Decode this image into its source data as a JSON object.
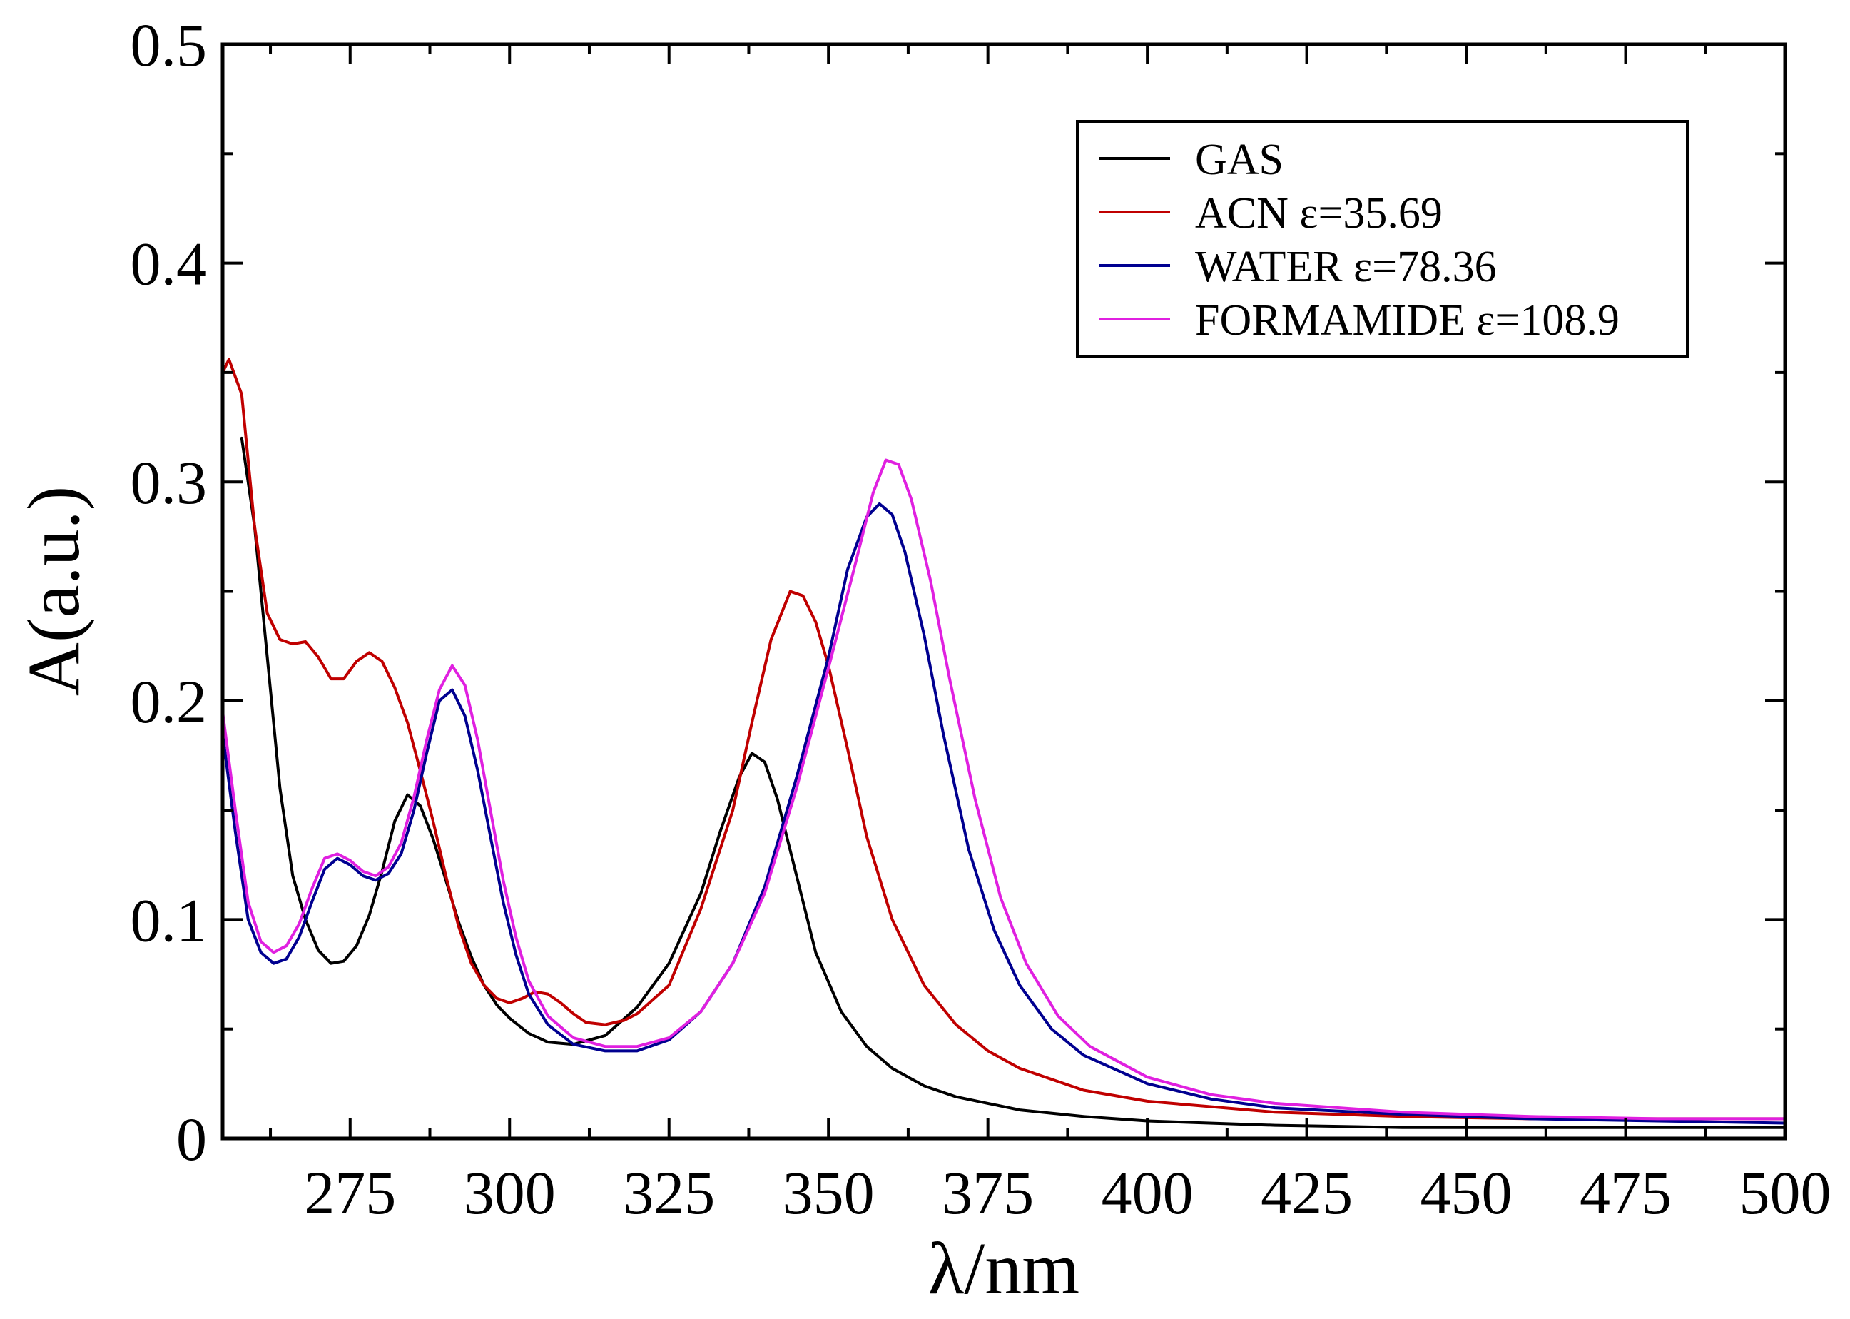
{
  "chart_data": {
    "type": "line",
    "title": "",
    "xlabel": "λ/nm",
    "ylabel": "A(a.u.)",
    "xlim": [
      255,
      500
    ],
    "ylim": [
      0,
      0.5
    ],
    "x_ticks": [
      275,
      300,
      325,
      350,
      375,
      400,
      425,
      450,
      475,
      500
    ],
    "y_ticks": [
      0,
      0.1,
      0.2,
      0.3,
      0.4,
      0.5
    ],
    "y_tick_labels": [
      "0",
      "0.1",
      "0.2",
      "0.3",
      "0.4",
      "0.5"
    ],
    "x_tick_labels": [
      "275",
      "300",
      "325",
      "350",
      "375",
      "400",
      "425",
      "450",
      "475",
      "500"
    ],
    "grid": false,
    "legend_position": "top-right",
    "series": [
      {
        "name": "GAS",
        "color": "#000000",
        "x": [
          258,
          260,
          262,
          264,
          266,
          268,
          270,
          272,
          274,
          276,
          278,
          280,
          282,
          284,
          286,
          288,
          290,
          292,
          294,
          296,
          298,
          300,
          303,
          306,
          310,
          315,
          320,
          325,
          330,
          333,
          336,
          338,
          340,
          342,
          345,
          348,
          352,
          356,
          360,
          365,
          370,
          375,
          380,
          390,
          400,
          420,
          440,
          460,
          480,
          500
        ],
        "y": [
          0.32,
          0.28,
          0.22,
          0.16,
          0.12,
          0.1,
          0.086,
          0.08,
          0.081,
          0.088,
          0.102,
          0.122,
          0.145,
          0.157,
          0.152,
          0.137,
          0.118,
          0.099,
          0.083,
          0.07,
          0.061,
          0.055,
          0.048,
          0.044,
          0.043,
          0.047,
          0.06,
          0.08,
          0.112,
          0.14,
          0.165,
          0.176,
          0.172,
          0.155,
          0.12,
          0.085,
          0.058,
          0.042,
          0.032,
          0.024,
          0.019,
          0.016,
          0.013,
          0.01,
          0.008,
          0.006,
          0.005,
          0.005,
          0.005,
          0.005
        ]
      },
      {
        "name": "ACN ε=35.69",
        "color": "#c00000",
        "x": [
          255,
          256,
          258,
          260,
          262,
          264,
          266,
          268,
          270,
          272,
          274,
          276,
          278,
          280,
          282,
          284,
          286,
          288,
          290,
          292,
          294,
          296,
          298,
          300,
          302,
          304,
          306,
          308,
          310,
          312,
          315,
          318,
          320,
          325,
          330,
          335,
          338,
          341,
          344,
          346,
          348,
          350,
          353,
          356,
          360,
          365,
          370,
          375,
          380,
          390,
          400,
          420,
          440,
          460,
          480,
          500
        ],
        "y": [
          0.35,
          0.356,
          0.34,
          0.28,
          0.24,
          0.228,
          0.226,
          0.227,
          0.22,
          0.21,
          0.21,
          0.218,
          0.222,
          0.218,
          0.206,
          0.19,
          0.168,
          0.145,
          0.12,
          0.097,
          0.08,
          0.07,
          0.064,
          0.062,
          0.064,
          0.067,
          0.066,
          0.062,
          0.057,
          0.053,
          0.052,
          0.054,
          0.057,
          0.07,
          0.105,
          0.15,
          0.19,
          0.228,
          0.25,
          0.248,
          0.236,
          0.216,
          0.178,
          0.138,
          0.1,
          0.07,
          0.052,
          0.04,
          0.032,
          0.022,
          0.017,
          0.012,
          0.01,
          0.009,
          0.009,
          0.009
        ]
      },
      {
        "name": "WATER ε=78.36",
        "color": "#000090",
        "x": [
          255,
          257,
          259,
          261,
          263,
          265,
          267,
          269,
          271,
          273,
          275,
          277,
          279,
          281,
          283,
          285,
          287,
          289,
          291,
          293,
          295,
          297,
          299,
          301,
          303,
          306,
          310,
          315,
          320,
          325,
          330,
          335,
          340,
          345,
          350,
          353,
          356,
          358,
          360,
          362,
          365,
          368,
          372,
          376,
          380,
          385,
          390,
          400,
          410,
          420,
          440,
          460,
          480,
          500
        ],
        "y": [
          0.185,
          0.14,
          0.1,
          0.085,
          0.08,
          0.082,
          0.092,
          0.108,
          0.123,
          0.128,
          0.125,
          0.12,
          0.118,
          0.121,
          0.13,
          0.15,
          0.176,
          0.2,
          0.205,
          0.193,
          0.168,
          0.138,
          0.108,
          0.084,
          0.066,
          0.052,
          0.043,
          0.04,
          0.04,
          0.045,
          0.058,
          0.08,
          0.115,
          0.165,
          0.22,
          0.26,
          0.284,
          0.29,
          0.285,
          0.268,
          0.23,
          0.185,
          0.132,
          0.095,
          0.07,
          0.05,
          0.038,
          0.025,
          0.018,
          0.014,
          0.011,
          0.009,
          0.008,
          0.007
        ]
      },
      {
        "name": "FORMAMIDE ε=108.9",
        "color": "#e020e0",
        "x": [
          255,
          257,
          259,
          261,
          263,
          265,
          267,
          269,
          271,
          273,
          275,
          277,
          279,
          281,
          283,
          285,
          287,
          289,
          291,
          293,
          295,
          297,
          299,
          301,
          303,
          306,
          310,
          315,
          320,
          325,
          330,
          335,
          340,
          345,
          350,
          354,
          357,
          359,
          361,
          363,
          366,
          369,
          373,
          377,
          381,
          386,
          391,
          400,
          410,
          420,
          440,
          460,
          480,
          500
        ],
        "y": [
          0.195,
          0.15,
          0.108,
          0.09,
          0.085,
          0.088,
          0.098,
          0.114,
          0.128,
          0.13,
          0.127,
          0.122,
          0.12,
          0.124,
          0.135,
          0.156,
          0.182,
          0.205,
          0.216,
          0.207,
          0.182,
          0.15,
          0.118,
          0.092,
          0.072,
          0.056,
          0.046,
          0.042,
          0.042,
          0.046,
          0.058,
          0.08,
          0.112,
          0.16,
          0.215,
          0.26,
          0.295,
          0.31,
          0.308,
          0.292,
          0.255,
          0.21,
          0.155,
          0.11,
          0.08,
          0.056,
          0.042,
          0.028,
          0.02,
          0.016,
          0.012,
          0.01,
          0.009,
          0.009
        ]
      }
    ]
  }
}
